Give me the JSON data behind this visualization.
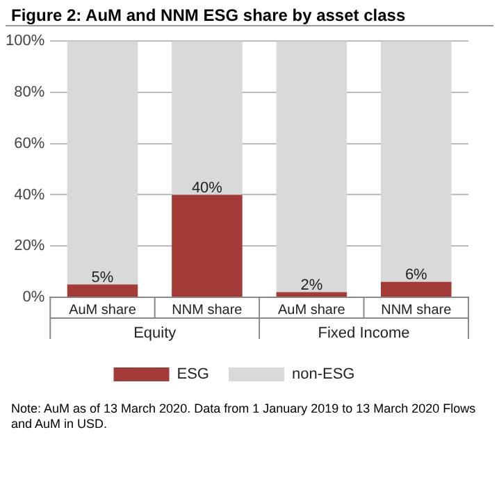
{
  "chart_data": {
    "type": "bar",
    "title": "Figure 2: AuM and NNM ESG share by asset class",
    "categories": [
      "AuM share",
      "NNM share",
      "AuM share",
      "NNM share"
    ],
    "stacked": true,
    "series": [
      {
        "name": "ESG",
        "color": "#a33b39",
        "values": [
          5,
          40,
          2,
          6
        ],
        "value_labels": [
          "5%",
          "40%",
          "2%",
          "6%"
        ]
      },
      {
        "name": "non-ESG",
        "color": "#d9d9d9",
        "values": [
          95,
          60,
          98,
          94
        ]
      }
    ],
    "ylim": [
      0,
      100
    ],
    "yticks": [
      {
        "value": 0,
        "label": "0%"
      },
      {
        "value": 20,
        "label": "20%"
      },
      {
        "value": 40,
        "label": "40%"
      },
      {
        "value": 60,
        "label": "60%"
      },
      {
        "value": 80,
        "label": "80%"
      },
      {
        "value": 100,
        "label": "100%"
      }
    ],
    "grid": "y",
    "legend": "bottom",
    "annotations": [
      "Equity",
      "Fixed Income",
      "Note: AuM as of 13 March 2020. Data from 1 January 2019 to 13 March 2020 Flows and AuM in USD."
    ]
  }
}
